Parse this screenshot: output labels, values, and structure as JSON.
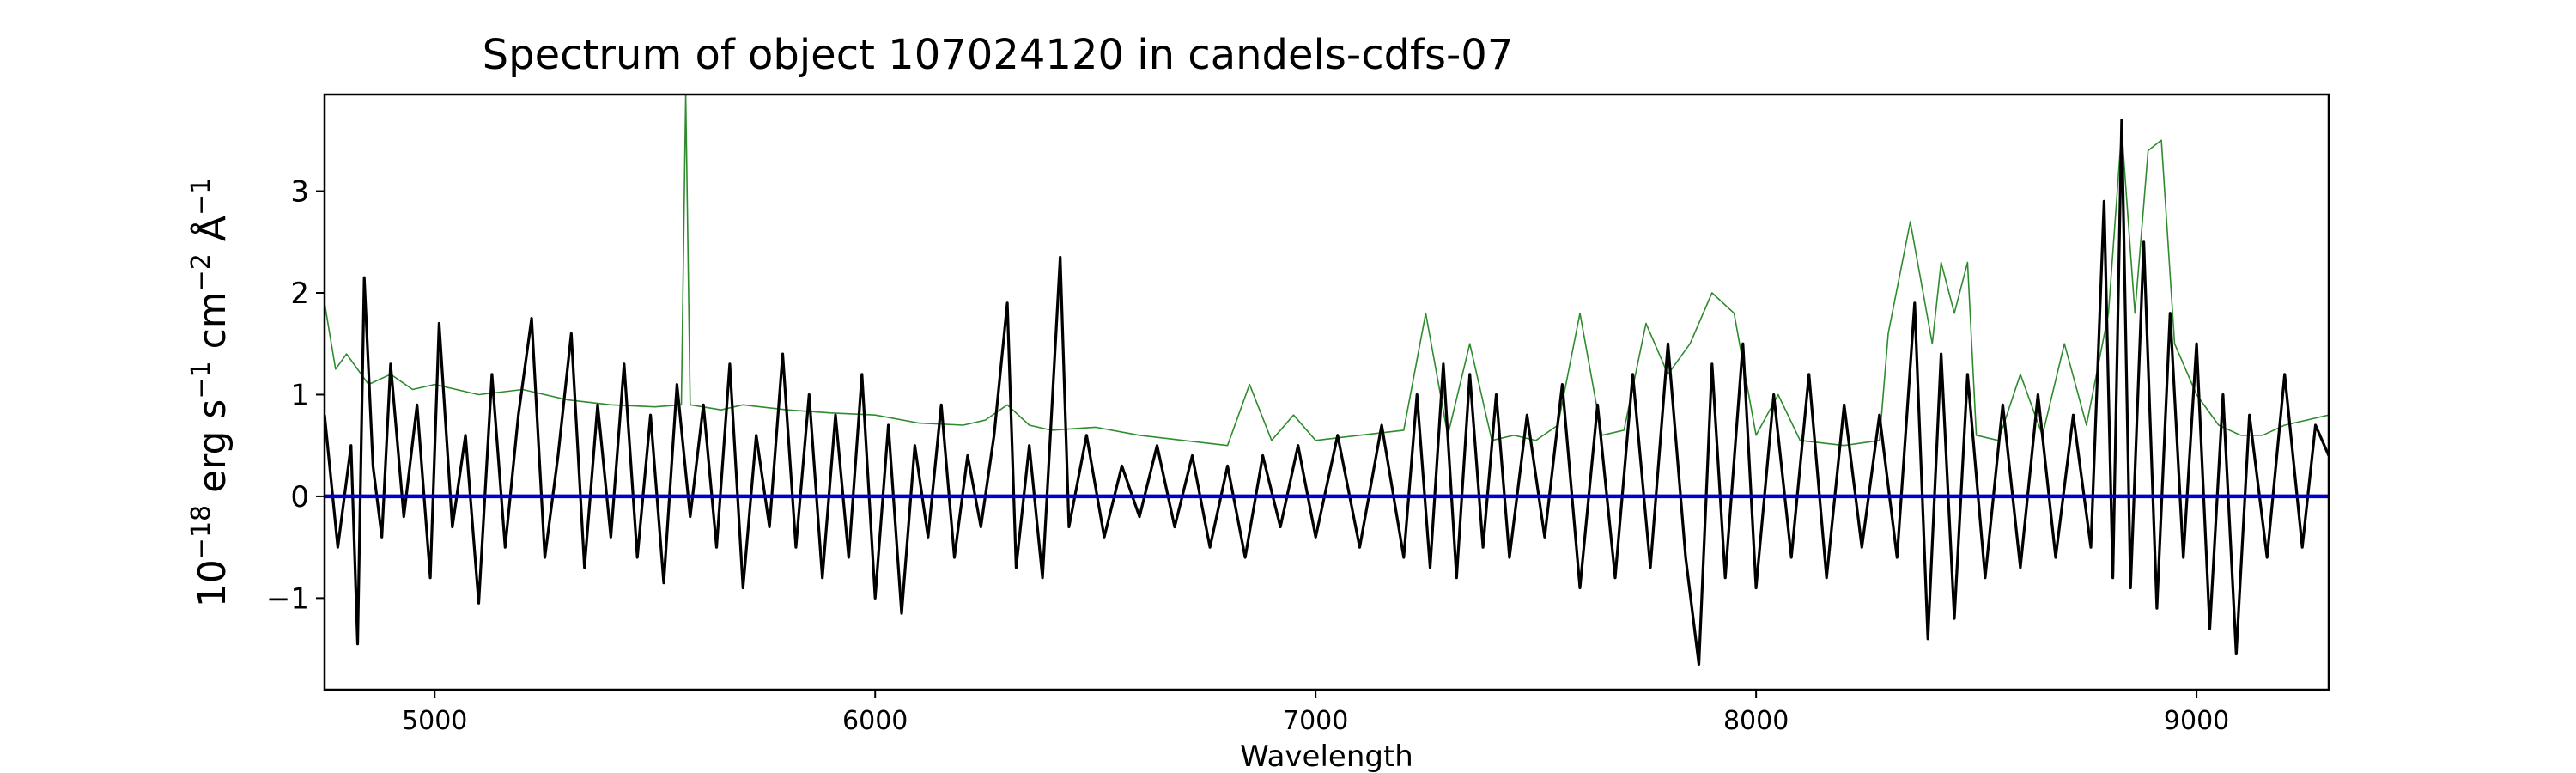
{
  "chart_data": {
    "type": "line",
    "title": "Spectrum of object 107024120 in candels-cdfs-07",
    "xlabel": "Wavelength",
    "ylabel": {
      "base": "10",
      "exp_1": "−18",
      "unit_a": " erg s",
      "exp_2": "−1",
      "unit_b": " cm",
      "exp_3": "−2",
      "unit_c": " Å",
      "exp_4": "−1"
    },
    "xlim": [
      4750,
      9300
    ],
    "ylim": [
      -1.9,
      3.95
    ],
    "xticks": [
      5000,
      6000,
      7000,
      8000,
      9000
    ],
    "yticks": [
      -1,
      0,
      1,
      2,
      3
    ],
    "grid": false,
    "legend": "none",
    "series": [
      {
        "role": "noise",
        "color": "#2e8b2e",
        "points": [
          [
            4750,
            1.9
          ],
          [
            4775,
            1.25
          ],
          [
            4800,
            1.4
          ],
          [
            4850,
            1.1
          ],
          [
            4900,
            1.2
          ],
          [
            4950,
            1.05
          ],
          [
            5000,
            1.1
          ],
          [
            5100,
            1.0
          ],
          [
            5200,
            1.05
          ],
          [
            5300,
            0.95
          ],
          [
            5400,
            0.9
          ],
          [
            5500,
            0.88
          ],
          [
            5560,
            0.9
          ],
          [
            5570,
            3.95
          ],
          [
            5580,
            0.9
          ],
          [
            5650,
            0.85
          ],
          [
            5700,
            0.9
          ],
          [
            5800,
            0.85
          ],
          [
            5900,
            0.82
          ],
          [
            6000,
            0.8
          ],
          [
            6100,
            0.72
          ],
          [
            6200,
            0.7
          ],
          [
            6250,
            0.75
          ],
          [
            6300,
            0.9
          ],
          [
            6350,
            0.7
          ],
          [
            6400,
            0.65
          ],
          [
            6500,
            0.68
          ],
          [
            6600,
            0.6
          ],
          [
            6700,
            0.55
          ],
          [
            6800,
            0.5
          ],
          [
            6850,
            1.1
          ],
          [
            6900,
            0.55
          ],
          [
            6950,
            0.8
          ],
          [
            7000,
            0.55
          ],
          [
            7100,
            0.6
          ],
          [
            7200,
            0.65
          ],
          [
            7250,
            1.8
          ],
          [
            7300,
            0.6
          ],
          [
            7350,
            1.5
          ],
          [
            7400,
            0.55
          ],
          [
            7450,
            0.6
          ],
          [
            7500,
            0.55
          ],
          [
            7550,
            0.7
          ],
          [
            7600,
            1.8
          ],
          [
            7650,
            0.6
          ],
          [
            7700,
            0.65
          ],
          [
            7750,
            1.7
          ],
          [
            7800,
            1.2
          ],
          [
            7850,
            1.5
          ],
          [
            7900,
            2.0
          ],
          [
            7950,
            1.8
          ],
          [
            8000,
            0.6
          ],
          [
            8050,
            1.0
          ],
          [
            8100,
            0.55
          ],
          [
            8200,
            0.5
          ],
          [
            8280,
            0.55
          ],
          [
            8300,
            1.6
          ],
          [
            8350,
            2.7
          ],
          [
            8400,
            1.5
          ],
          [
            8420,
            2.3
          ],
          [
            8450,
            1.8
          ],
          [
            8480,
            2.3
          ],
          [
            8500,
            0.6
          ],
          [
            8550,
            0.55
          ],
          [
            8600,
            1.2
          ],
          [
            8650,
            0.6
          ],
          [
            8700,
            1.5
          ],
          [
            8750,
            0.7
          ],
          [
            8800,
            1.8
          ],
          [
            8830,
            3.6
          ],
          [
            8860,
            1.8
          ],
          [
            8890,
            3.4
          ],
          [
            8920,
            3.5
          ],
          [
            8950,
            1.5
          ],
          [
            9000,
            1.0
          ],
          [
            9050,
            0.7
          ],
          [
            9100,
            0.6
          ],
          [
            9150,
            0.6
          ],
          [
            9200,
            0.7
          ],
          [
            9250,
            0.75
          ],
          [
            9300,
            0.8
          ]
        ]
      },
      {
        "role": "flux",
        "color": "#000000",
        "points": [
          [
            4750,
            0.8
          ],
          [
            4780,
            -0.5
          ],
          [
            4810,
            0.5
          ],
          [
            4825,
            -1.45
          ],
          [
            4840,
            2.15
          ],
          [
            4860,
            0.3
          ],
          [
            4880,
            -0.4
          ],
          [
            4900,
            1.3
          ],
          [
            4930,
            -0.2
          ],
          [
            4960,
            0.9
          ],
          [
            4990,
            -0.8
          ],
          [
            5010,
            1.7
          ],
          [
            5040,
            -0.3
          ],
          [
            5070,
            0.6
          ],
          [
            5100,
            -1.05
          ],
          [
            5130,
            1.2
          ],
          [
            5160,
            -0.5
          ],
          [
            5190,
            0.8
          ],
          [
            5220,
            1.75
          ],
          [
            5250,
            -0.6
          ],
          [
            5280,
            0.4
          ],
          [
            5310,
            1.6
          ],
          [
            5340,
            -0.7
          ],
          [
            5370,
            0.9
          ],
          [
            5400,
            -0.4
          ],
          [
            5430,
            1.3
          ],
          [
            5460,
            -0.6
          ],
          [
            5490,
            0.8
          ],
          [
            5520,
            -0.85
          ],
          [
            5550,
            1.1
          ],
          [
            5580,
            -0.2
          ],
          [
            5610,
            0.9
          ],
          [
            5640,
            -0.5
          ],
          [
            5670,
            1.3
          ],
          [
            5700,
            -0.9
          ],
          [
            5730,
            0.6
          ],
          [
            5760,
            -0.3
          ],
          [
            5790,
            1.4
          ],
          [
            5820,
            -0.5
          ],
          [
            5850,
            1.0
          ],
          [
            5880,
            -0.8
          ],
          [
            5910,
            0.8
          ],
          [
            5940,
            -0.6
          ],
          [
            5970,
            1.2
          ],
          [
            6000,
            -1.0
          ],
          [
            6030,
            0.7
          ],
          [
            6060,
            -1.15
          ],
          [
            6090,
            0.5
          ],
          [
            6120,
            -0.4
          ],
          [
            6150,
            0.9
          ],
          [
            6180,
            -0.6
          ],
          [
            6210,
            0.4
          ],
          [
            6240,
            -0.3
          ],
          [
            6270,
            0.6
          ],
          [
            6300,
            1.9
          ],
          [
            6320,
            -0.7
          ],
          [
            6350,
            0.5
          ],
          [
            6380,
            -0.8
          ],
          [
            6420,
            2.35
          ],
          [
            6440,
            -0.3
          ],
          [
            6480,
            0.6
          ],
          [
            6520,
            -0.4
          ],
          [
            6560,
            0.3
          ],
          [
            6600,
            -0.2
          ],
          [
            6640,
            0.5
          ],
          [
            6680,
            -0.3
          ],
          [
            6720,
            0.4
          ],
          [
            6760,
            -0.5
          ],
          [
            6800,
            0.3
          ],
          [
            6840,
            -0.6
          ],
          [
            6880,
            0.4
          ],
          [
            6920,
            -0.3
          ],
          [
            6960,
            0.5
          ],
          [
            7000,
            -0.4
          ],
          [
            7050,
            0.6
          ],
          [
            7100,
            -0.5
          ],
          [
            7150,
            0.7
          ],
          [
            7200,
            -0.6
          ],
          [
            7230,
            1.0
          ],
          [
            7260,
            -0.7
          ],
          [
            7290,
            1.3
          ],
          [
            7320,
            -0.8
          ],
          [
            7350,
            1.2
          ],
          [
            7380,
            -0.5
          ],
          [
            7410,
            1.0
          ],
          [
            7440,
            -0.6
          ],
          [
            7480,
            0.8
          ],
          [
            7520,
            -0.4
          ],
          [
            7560,
            1.1
          ],
          [
            7600,
            -0.9
          ],
          [
            7640,
            0.9
          ],
          [
            7680,
            -0.8
          ],
          [
            7720,
            1.2
          ],
          [
            7760,
            -0.7
          ],
          [
            7800,
            1.5
          ],
          [
            7840,
            -0.6
          ],
          [
            7870,
            -1.65
          ],
          [
            7900,
            1.3
          ],
          [
            7930,
            -0.8
          ],
          [
            7970,
            1.5
          ],
          [
            8000,
            -0.9
          ],
          [
            8040,
            1.0
          ],
          [
            8080,
            -0.6
          ],
          [
            8120,
            1.2
          ],
          [
            8160,
            -0.8
          ],
          [
            8200,
            0.9
          ],
          [
            8240,
            -0.5
          ],
          [
            8280,
            0.8
          ],
          [
            8320,
            -0.6
          ],
          [
            8360,
            1.9
          ],
          [
            8390,
            -1.4
          ],
          [
            8420,
            1.4
          ],
          [
            8450,
            -1.2
          ],
          [
            8480,
            1.2
          ],
          [
            8520,
            -0.8
          ],
          [
            8560,
            0.9
          ],
          [
            8600,
            -0.7
          ],
          [
            8640,
            1.0
          ],
          [
            8680,
            -0.6
          ],
          [
            8720,
            0.8
          ],
          [
            8760,
            -0.5
          ],
          [
            8790,
            2.9
          ],
          [
            8810,
            -0.8
          ],
          [
            8830,
            3.7
          ],
          [
            8850,
            -0.9
          ],
          [
            8880,
            2.5
          ],
          [
            8910,
            -1.1
          ],
          [
            8940,
            1.8
          ],
          [
            8970,
            -0.6
          ],
          [
            9000,
            1.5
          ],
          [
            9030,
            -1.3
          ],
          [
            9060,
            1.0
          ],
          [
            9090,
            -1.55
          ],
          [
            9120,
            0.8
          ],
          [
            9160,
            -0.6
          ],
          [
            9200,
            1.2
          ],
          [
            9240,
            -0.5
          ],
          [
            9270,
            0.7
          ],
          [
            9300,
            0.4
          ]
        ]
      },
      {
        "role": "zero",
        "color": "#0000cc",
        "points": [
          [
            4750,
            0
          ],
          [
            9300,
            0
          ]
        ]
      }
    ]
  }
}
